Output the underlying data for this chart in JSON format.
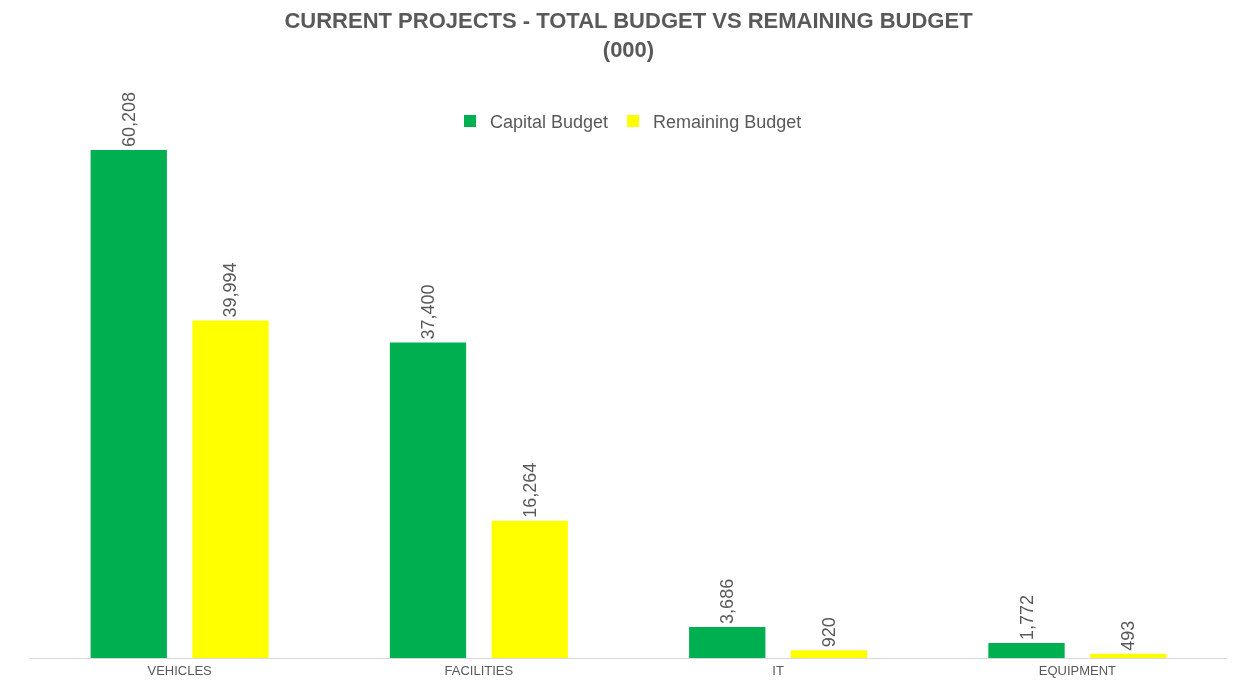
{
  "chart_data": {
    "type": "bar",
    "title": "CURRENT PROJECTS - TOTAL BUDGET VS REMAINING BUDGET\n(000)",
    "categories": [
      "VEHICLES",
      "FACILITIES",
      "IT",
      "EQUIPMENT"
    ],
    "series": [
      {
        "name": "Capital Budget",
        "color": "#00b050",
        "values": [
          60208,
          37400,
          3686,
          1772
        ],
        "value_labels": [
          "60,208",
          "37,400",
          "3,686",
          "1,772"
        ]
      },
      {
        "name": "Remaining Budget",
        "color": "#ffff00",
        "values": [
          39994,
          16264,
          920,
          493
        ],
        "value_labels": [
          "39,994",
          "16,264",
          "920",
          "493"
        ]
      }
    ],
    "legend": "top"
  }
}
